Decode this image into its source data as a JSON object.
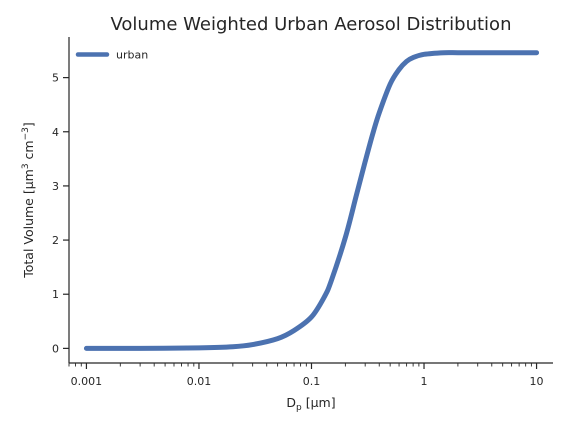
{
  "chart_data": {
    "type": "line",
    "title": "Volume Weighted Urban Aerosol Distribution",
    "xlabel": {
      "base": "D",
      "sub": "p",
      "rest": " [μm]"
    },
    "ylabel": {
      "p1": "Total Volume [μm",
      "sup1": "3",
      "p2": " cm",
      "sup2": "−3",
      "p3": "]"
    },
    "xscale": "log",
    "xlim": [
      0.0007,
      14
    ],
    "ylim": [
      -0.27,
      5.75
    ],
    "xticks": [
      0.001,
      0.01,
      0.1,
      1,
      10
    ],
    "xtick_labels": [
      "0.001",
      "0.01",
      "0.1",
      "1",
      "10"
    ],
    "yticks": [
      0,
      1,
      2,
      3,
      4,
      5
    ],
    "ytick_labels": [
      "0",
      "1",
      "2",
      "3",
      "4",
      "5"
    ],
    "legend": {
      "placement": "top-left",
      "entries": [
        "urban"
      ]
    },
    "grid": false,
    "series": [
      {
        "name": "urban",
        "color": "#4C72B0",
        "x": [
          0.001,
          0.003,
          0.01,
          0.02,
          0.03,
          0.05,
          0.07,
          0.1,
          0.13,
          0.15,
          0.2,
          0.25,
          0.3,
          0.35,
          0.4,
          0.5,
          0.6,
          0.7,
          0.8,
          1.0,
          1.5,
          2,
          3,
          5,
          10
        ],
        "y": [
          0.0,
          0.0,
          0.01,
          0.03,
          0.07,
          0.18,
          0.33,
          0.58,
          0.95,
          1.25,
          2.05,
          2.82,
          3.45,
          3.96,
          4.35,
          4.88,
          5.15,
          5.3,
          5.37,
          5.43,
          5.46,
          5.46,
          5.46,
          5.46,
          5.46
        ]
      }
    ]
  }
}
